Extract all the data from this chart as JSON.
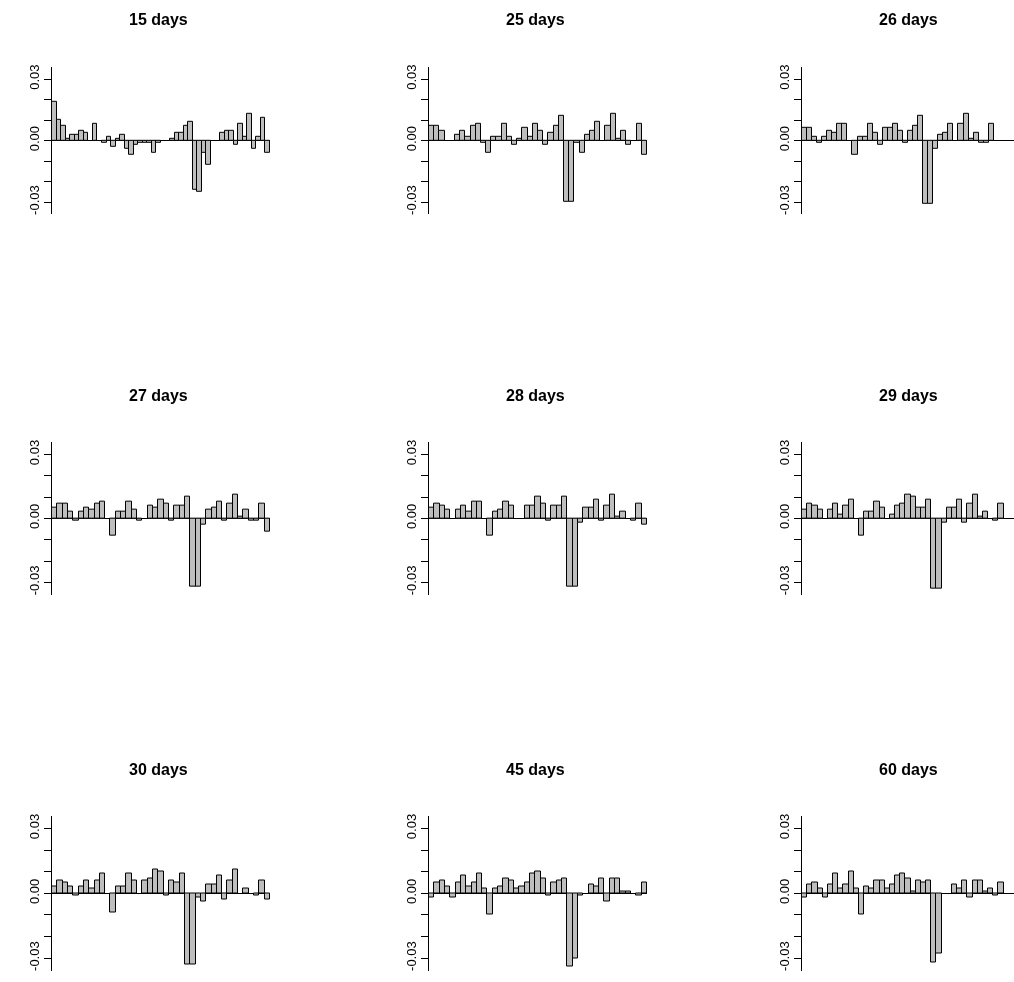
{
  "chart_data": [
    {
      "type": "bar",
      "title": "15 days",
      "categories": [
        null,
        null,
        null,
        null,
        null,
        null,
        null,
        null,
        null,
        null,
        null,
        null,
        null,
        null,
        null,
        null,
        null,
        null,
        null,
        null,
        null,
        null,
        null,
        null,
        null,
        null,
        null,
        null,
        null,
        null,
        null,
        null,
        null,
        null,
        null,
        null,
        null,
        null,
        null,
        null,
        null,
        null,
        null,
        null,
        null,
        null,
        null,
        null
      ],
      "values": [
        0.019,
        0.01,
        0.007,
        0.001,
        0.003,
        0.003,
        0.005,
        0.004,
        0,
        0.008,
        0,
        -0.001,
        0.002,
        -0.003,
        0.001,
        0.003,
        -0.004,
        -0.007,
        -0.002,
        -0.001,
        -0.001,
        -0.001,
        -0.006,
        -0.001,
        0,
        0,
        0.001,
        0.004,
        0.004,
        0.007,
        0.009,
        -0.024,
        -0.025,
        -0.006,
        -0.012,
        0,
        0,
        0.004,
        0.005,
        0.005,
        -0.002,
        0.008,
        0.002,
        0.013,
        -0.004,
        0.002,
        0.011,
        -0.006
      ],
      "color": "#bebebe",
      "ylim": [
        -0.036,
        0.036
      ],
      "yticks": [
        {
          "value": -0.03,
          "label": "-0.03"
        },
        {
          "value": -0.02,
          "label": null
        },
        {
          "value": -0.01,
          "label": null
        },
        {
          "value": 0,
          "label": "0.00"
        },
        {
          "value": 0.01,
          "label": null
        },
        {
          "value": 0.02,
          "label": null
        },
        {
          "value": 0.03,
          "label": "0.03"
        }
      ],
      "tick_labels": "y"
    },
    {
      "type": "bar",
      "title": "25 days",
      "categories": [
        null,
        null,
        null,
        null,
        null,
        null,
        null,
        null,
        null,
        null,
        null,
        null,
        null,
        null,
        null,
        null,
        null,
        null,
        null,
        null,
        null,
        null,
        null,
        null,
        null,
        null,
        null,
        null,
        null,
        null,
        null,
        null,
        null,
        null,
        null,
        null,
        null,
        null,
        null,
        null,
        null,
        null
      ],
      "values": [
        0.007,
        0.007,
        0.005,
        0,
        0,
        0.003,
        0.005,
        0.002,
        0.007,
        0.008,
        -0.001,
        -0.006,
        0.002,
        0.002,
        0.008,
        0.002,
        -0.002,
        0.001,
        0.006,
        0.002,
        0.008,
        0.005,
        -0.002,
        0.004,
        0.007,
        0.012,
        -0.03,
        -0.03,
        -0.001,
        -0.006,
        0.003,
        0.005,
        0.009,
        0,
        0.007,
        0.013,
        0.001,
        0.005,
        -0.002,
        0,
        0.008,
        -0.007
      ],
      "color": "#bebebe",
      "ylim": [
        -0.036,
        0.036
      ],
      "yticks": [
        {
          "value": -0.03,
          "label": "-0.03"
        },
        {
          "value": -0.02,
          "label": null
        },
        {
          "value": -0.01,
          "label": null
        },
        {
          "value": 0,
          "label": "0.00"
        },
        {
          "value": 0.01,
          "label": null
        },
        {
          "value": 0.02,
          "label": null
        },
        {
          "value": 0.03,
          "label": "0.03"
        }
      ],
      "tick_labels": "y"
    },
    {
      "type": "bar",
      "title": "26 days",
      "categories": [
        null,
        null,
        null,
        null,
        null,
        null,
        null,
        null,
        null,
        null,
        null,
        null,
        null,
        null,
        null,
        null,
        null,
        null,
        null,
        null,
        null,
        null,
        null,
        null,
        null,
        null,
        null,
        null,
        null,
        null,
        null,
        null,
        null,
        null,
        null,
        null,
        null,
        null,
        null,
        null,
        null,
        null
      ],
      "values": [
        0.006,
        0.006,
        0.002,
        -0.001,
        0.002,
        0.005,
        0.004,
        0.008,
        0.008,
        0,
        -0.007,
        0.002,
        0.002,
        0.008,
        0.004,
        -0.002,
        0.006,
        0.006,
        0.008,
        0.005,
        -0.001,
        0.005,
        0.007,
        0.012,
        -0.031,
        -0.031,
        -0.004,
        0.003,
        0.004,
        0.008,
        0,
        0.008,
        0.013,
        0.001,
        0.004,
        -0.001,
        -0.001,
        0.008,
        null,
        null,
        null,
        null
      ],
      "color": "#bebebe",
      "ylim": [
        -0.036,
        0.036
      ],
      "yticks": [
        {
          "value": -0.03,
          "label": "-0.03"
        },
        {
          "value": -0.02,
          "label": null
        },
        {
          "value": -0.01,
          "label": null
        },
        {
          "value": 0,
          "label": "0.00"
        },
        {
          "value": 0.01,
          "label": null
        },
        {
          "value": 0.02,
          "label": null
        },
        {
          "value": 0.03,
          "label": "0.03"
        }
      ],
      "tick_labels": "y"
    },
    {
      "type": "bar",
      "title": "27 days",
      "categories": [
        null,
        null,
        null,
        null,
        null,
        null,
        null,
        null,
        null,
        null,
        null,
        null,
        null,
        null,
        null,
        null,
        null,
        null,
        null,
        null,
        null,
        null,
        null,
        null,
        null,
        null,
        null,
        null,
        null,
        null,
        null,
        null,
        null,
        null,
        null,
        null,
        null,
        null,
        null,
        null,
        null
      ],
      "values": [
        0.005,
        0.007,
        0.007,
        0.003,
        -0.001,
        0.003,
        0.005,
        0.004,
        0.007,
        0.008,
        0,
        -0.008,
        0.003,
        0.003,
        0.008,
        0.004,
        -0.001,
        0,
        0.006,
        0.005,
        0.009,
        0.007,
        -0.001,
        0.006,
        0.006,
        0.01,
        -0.032,
        -0.032,
        -0.003,
        0.004,
        0.005,
        0.008,
        -0.001,
        0.007,
        0.011,
        0.001,
        0.004,
        -0.001,
        -0.001,
        0.007,
        -0.006
      ],
      "color": "#bebebe",
      "ylim": [
        -0.036,
        0.036
      ],
      "yticks": [
        {
          "value": -0.03,
          "label": "-0.03"
        },
        {
          "value": -0.02,
          "label": null
        },
        {
          "value": -0.01,
          "label": null
        },
        {
          "value": 0,
          "label": "0.00"
        },
        {
          "value": 0.01,
          "label": null
        },
        {
          "value": 0.02,
          "label": null
        },
        {
          "value": 0.03,
          "label": "0.03"
        }
      ],
      "tick_labels": "y"
    },
    {
      "type": "bar",
      "title": "28 days",
      "categories": [
        null,
        null,
        null,
        null,
        null,
        null,
        null,
        null,
        null,
        null,
        null,
        null,
        null,
        null,
        null,
        null,
        null,
        null,
        null,
        null,
        null,
        null,
        null,
        null,
        null,
        null,
        null,
        null,
        null,
        null,
        null,
        null,
        null,
        null,
        null,
        null,
        null,
        null,
        null,
        null,
        null
      ],
      "values": [
        0.005,
        0.007,
        0.006,
        0.004,
        0,
        0.004,
        0.006,
        0.003,
        0.008,
        0.008,
        0,
        -0.008,
        0.003,
        0.004,
        0.008,
        0.006,
        0,
        0,
        0.006,
        0.006,
        0.01,
        0.007,
        -0.001,
        0.006,
        0.006,
        0.01,
        -0.032,
        -0.032,
        -0.002,
        0.005,
        0.005,
        0.009,
        -0.001,
        0.006,
        0.011,
        0.001,
        0.003,
        0,
        -0.001,
        0.007,
        -0.003
      ],
      "color": "#bebebe",
      "ylim": [
        -0.036,
        0.036
      ],
      "yticks": [
        {
          "value": -0.03,
          "label": "-0.03"
        },
        {
          "value": -0.02,
          "label": null
        },
        {
          "value": -0.01,
          "label": null
        },
        {
          "value": 0,
          "label": "0.00"
        },
        {
          "value": 0.01,
          "label": null
        },
        {
          "value": 0.02,
          "label": null
        },
        {
          "value": 0.03,
          "label": "0.03"
        }
      ],
      "tick_labels": "y"
    },
    {
      "type": "bar",
      "title": "29 days",
      "categories": [
        null,
        null,
        null,
        null,
        null,
        null,
        null,
        null,
        null,
        null,
        null,
        null,
        null,
        null,
        null,
        null,
        null,
        null,
        null,
        null,
        null,
        null,
        null,
        null,
        null,
        null,
        null,
        null,
        null,
        null,
        null,
        null,
        null,
        null,
        null,
        null,
        null,
        null,
        null,
        null,
        null
      ],
      "values": [
        0.004,
        0.007,
        0.006,
        0.004,
        0,
        0.004,
        0.007,
        0.002,
        0.006,
        0.009,
        0,
        -0.008,
        0.003,
        0.003,
        0.008,
        0.005,
        0,
        0.002,
        0.006,
        0.007,
        0.011,
        0.01,
        0.005,
        0.005,
        0.009,
        -0.033,
        -0.033,
        -0.002,
        0.005,
        0.005,
        0.009,
        -0.002,
        0.007,
        0.011,
        0.001,
        0.003,
        0,
        -0.001,
        0.007,
        null,
        null
      ],
      "color": "#bebebe",
      "ylim": [
        -0.036,
        0.036
      ],
      "yticks": [
        {
          "value": -0.03,
          "label": "-0.03"
        },
        {
          "value": -0.02,
          "label": null
        },
        {
          "value": -0.01,
          "label": null
        },
        {
          "value": 0,
          "label": "0.00"
        },
        {
          "value": 0.01,
          "label": null
        },
        {
          "value": 0.02,
          "label": null
        },
        {
          "value": 0.03,
          "label": "0.03"
        }
      ],
      "tick_labels": "y"
    },
    {
      "type": "bar",
      "title": "30 days",
      "categories": [
        null,
        null,
        null,
        null,
        null,
        null,
        null,
        null,
        null,
        null,
        null,
        null,
        null,
        null,
        null,
        null,
        null,
        null,
        null,
        null,
        null,
        null,
        null,
        null,
        null,
        null,
        null,
        null,
        null,
        null,
        null,
        null,
        null,
        null,
        null,
        null,
        null,
        null,
        null,
        null,
        null
      ],
      "values": [
        0.003,
        0.006,
        0.005,
        0.003,
        -0.001,
        0.003,
        0.006,
        0.002,
        0.006,
        0.009,
        0,
        -0.009,
        0.003,
        0.003,
        0.009,
        0.006,
        0,
        0.006,
        0.007,
        0.011,
        0.01,
        -0.001,
        0.006,
        0.005,
        0.009,
        -0.033,
        -0.033,
        -0.002,
        -0.004,
        0.004,
        0.004,
        0.008,
        -0.003,
        0.006,
        0.011,
        0,
        0.002,
        0,
        -0.001,
        0.006,
        -0.003
      ],
      "color": "#bebebe",
      "ylim": [
        -0.036,
        0.036
      ],
      "yticks": [
        {
          "value": -0.03,
          "label": "-0.03"
        },
        {
          "value": -0.02,
          "label": null
        },
        {
          "value": -0.01,
          "label": null
        },
        {
          "value": 0,
          "label": "0.00"
        },
        {
          "value": 0.01,
          "label": null
        },
        {
          "value": 0.02,
          "label": null
        },
        {
          "value": 0.03,
          "label": "0.03"
        }
      ],
      "tick_labels": "y"
    },
    {
      "type": "bar",
      "title": "45 days",
      "categories": [
        null,
        null,
        null,
        null,
        null,
        null,
        null,
        null,
        null,
        null,
        null,
        null,
        null,
        null,
        null,
        null,
        null,
        null,
        null,
        null,
        null,
        null,
        null,
        null,
        null,
        null,
        null,
        null,
        null,
        null,
        null,
        null,
        null,
        null,
        null,
        null,
        null,
        null,
        null,
        null,
        null
      ],
      "values": [
        -0.002,
        0.005,
        0.006,
        0.003,
        -0.002,
        0.005,
        0.008,
        0.003,
        0.005,
        0.009,
        0.002,
        -0.01,
        0.002,
        0.003,
        0.007,
        0.006,
        0.002,
        0.003,
        0.005,
        0.009,
        0.01,
        0.007,
        -0.001,
        0.005,
        0.006,
        0.007,
        -0.034,
        -0.03,
        -0.001,
        0,
        0.004,
        0.003,
        0.007,
        -0.004,
        0.007,
        0.007,
        0.001,
        0.001,
        0,
        -0.001,
        0.005
      ],
      "color": "#bebebe",
      "ylim": [
        -0.036,
        0.036
      ],
      "yticks": [
        {
          "value": -0.03,
          "label": "-0.03"
        },
        {
          "value": -0.02,
          "label": null
        },
        {
          "value": -0.01,
          "label": null
        },
        {
          "value": 0,
          "label": "0.00"
        },
        {
          "value": 0.01,
          "label": null
        },
        {
          "value": 0.02,
          "label": null
        },
        {
          "value": 0.03,
          "label": "0.03"
        }
      ],
      "tick_labels": "y"
    },
    {
      "type": "bar",
      "title": "60 days",
      "categories": [
        null,
        null,
        null,
        null,
        null,
        null,
        null,
        null,
        null,
        null,
        null,
        null,
        null,
        null,
        null,
        null,
        null,
        null,
        null,
        null,
        null,
        null,
        null,
        null,
        null,
        null,
        null,
        null,
        null,
        null,
        null,
        null,
        null,
        null,
        null,
        null,
        null,
        null,
        null,
        null,
        null
      ],
      "values": [
        -0.002,
        0.004,
        0.005,
        0.002,
        -0.002,
        0.004,
        0.009,
        0.002,
        0.004,
        0.01,
        0.002,
        -0.01,
        0.003,
        0.002,
        0.006,
        0.006,
        0.002,
        0.004,
        0.008,
        0.009,
        0.007,
        0.001,
        0.006,
        0.005,
        0.006,
        -0.032,
        -0.028,
        0,
        0,
        0.004,
        0.002,
        0.006,
        -0.002,
        0.006,
        0.006,
        0.001,
        0.002,
        -0.001,
        0.005,
        null,
        null
      ],
      "color": "#bebebe",
      "ylim": [
        -0.036,
        0.036
      ],
      "yticks": [
        {
          "value": -0.03,
          "label": "-0.03"
        },
        {
          "value": -0.02,
          "label": null
        },
        {
          "value": -0.01,
          "label": null
        },
        {
          "value": 0,
          "label": "0.00"
        },
        {
          "value": 0.01,
          "label": null
        },
        {
          "value": 0.02,
          "label": null
        },
        {
          "value": 0.03,
          "label": "0.03"
        }
      ],
      "tick_labels": "y"
    }
  ]
}
